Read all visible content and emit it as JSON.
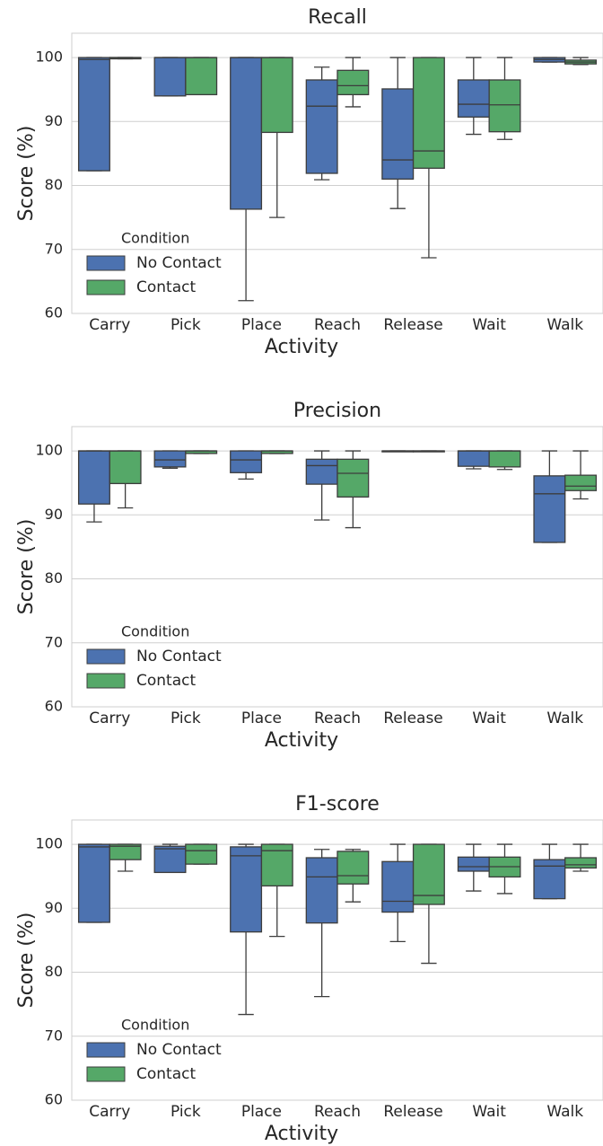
{
  "chart_data": [
    {
      "type": "box",
      "title": "Recall",
      "xlabel": "Activity",
      "ylabel": "Score (%)",
      "categories": [
        "Carry",
        "Pick",
        "Place",
        "Reach",
        "Release",
        "Wait",
        "Walk"
      ],
      "ylim": [
        60,
        103.8
      ],
      "yticks": [
        60,
        70,
        80,
        90,
        100
      ],
      "grid": true,
      "legend_title": "Condition",
      "legend": "lower left",
      "series": [
        {
          "name": "No Contact",
          "color": "#4c72b0",
          "min": [
            82.3,
            94,
            62,
            80.9,
            76.4,
            88,
            99.3
          ],
          "q1": [
            82.3,
            94,
            76.3,
            81.9,
            81,
            90.7,
            99.3
          ],
          "median": [
            99.7,
            100,
            100,
            92.4,
            84,
            92.7,
            99.7
          ],
          "q3": [
            100,
            100,
            100,
            96.5,
            95.1,
            96.5,
            100
          ],
          "max": [
            100,
            100,
            100,
            98.5,
            100,
            100,
            100
          ]
        },
        {
          "name": "Contact",
          "color": "#55a868",
          "min": [
            99.8,
            94.2,
            75,
            92.3,
            68.7,
            87.2,
            98.9
          ],
          "q1": [
            99.8,
            94.2,
            88.3,
            94.2,
            82.7,
            88.4,
            99
          ],
          "median": [
            100,
            100,
            100,
            95.6,
            85.4,
            92.6,
            99.3
          ],
          "q3": [
            100,
            100,
            100,
            98,
            100,
            96.5,
            99.6
          ],
          "max": [
            100,
            100,
            100,
            100,
            100,
            100,
            100
          ]
        }
      ]
    },
    {
      "type": "box",
      "title": "Precision",
      "xlabel": "Activity",
      "ylabel": "Score (%)",
      "categories": [
        "Carry",
        "Pick",
        "Place",
        "Reach",
        "Release",
        "Wait",
        "Walk"
      ],
      "ylim": [
        60,
        103.8
      ],
      "yticks": [
        60,
        70,
        80,
        90,
        100
      ],
      "grid": true,
      "legend_title": "Condition",
      "legend": "lower left",
      "series": [
        {
          "name": "No Contact",
          "color": "#4c72b0",
          "min": [
            88.9,
            97.3,
            95.6,
            89.2,
            99.9,
            97.2,
            85.7
          ],
          "q1": [
            91.7,
            97.5,
            96.6,
            94.8,
            99.9,
            97.6,
            85.7
          ],
          "median": [
            100,
            98.6,
            98.6,
            97.7,
            100,
            100,
            93.3
          ],
          "q3": [
            100,
            100,
            100,
            98.7,
            100,
            100,
            96.1
          ],
          "max": [
            100,
            100,
            100,
            100,
            100,
            100,
            100
          ]
        },
        {
          "name": "Contact",
          "color": "#55a868",
          "min": [
            91.1,
            99.6,
            99.6,
            88,
            99.9,
            97.1,
            92.5
          ],
          "q1": [
            94.9,
            99.6,
            99.6,
            92.8,
            99.9,
            97.5,
            93.8
          ],
          "median": [
            100,
            100,
            100,
            96.5,
            100,
            100,
            94.5
          ],
          "q3": [
            100,
            100,
            100,
            98.7,
            100,
            100,
            96.2
          ],
          "max": [
            100,
            100,
            100,
            100,
            100,
            100,
            100
          ]
        }
      ]
    },
    {
      "type": "box",
      "title": "F1-score",
      "xlabel": "Activity",
      "ylabel": "Score (%)",
      "categories": [
        "Carry",
        "Pick",
        "Place",
        "Reach",
        "Release",
        "Wait",
        "Walk"
      ],
      "ylim": [
        60,
        103.8
      ],
      "yticks": [
        60,
        70,
        80,
        90,
        100
      ],
      "grid": true,
      "legend_title": "Condition",
      "legend": "lower left",
      "series": [
        {
          "name": "No Contact",
          "color": "#4c72b0",
          "min": [
            87.8,
            95.6,
            73.4,
            76.2,
            84.8,
            92.7,
            91.5
          ],
          "q1": [
            87.8,
            95.6,
            86.3,
            87.7,
            89.4,
            95.8,
            91.5
          ],
          "median": [
            99.6,
            99.3,
            98.2,
            94.9,
            91.1,
            96.5,
            96.6
          ],
          "q3": [
            100,
            99.7,
            99.6,
            97.9,
            97.3,
            98,
            97.6
          ],
          "max": [
            100,
            100,
            100,
            99.2,
            100,
            100,
            100
          ]
        },
        {
          "name": "Contact",
          "color": "#55a868",
          "min": [
            95.8,
            96.9,
            85.6,
            91,
            81.4,
            92.3,
            95.8
          ],
          "q1": [
            97.6,
            96.9,
            93.5,
            93.8,
            90.6,
            94.9,
            96.3
          ],
          "median": [
            99.7,
            99,
            99,
            95.1,
            92,
            96.5,
            96.8
          ],
          "q3": [
            100,
            100,
            100,
            98.9,
            100,
            98,
            97.9
          ],
          "max": [
            100,
            100,
            100,
            99.2,
            100,
            100,
            100
          ]
        }
      ]
    }
  ]
}
